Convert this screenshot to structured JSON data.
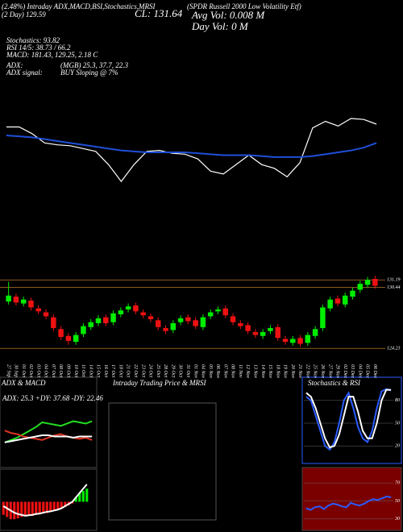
{
  "header": {
    "left1": "(2.48%) Intraday ADX,MACD,BSI,Stochastics,MRSI",
    "left2": "(2 Day) 129.59",
    "name": "(SPDR Russell 2000 Low Volatility Etf)",
    "close": "CL: 131.64",
    "avg_vol": "Avg Vol: 0.008 M",
    "day_vol": "Day Vol: 0  M",
    "stoch": "Stochastics: 93.82",
    "rsi": "RSI 14/5: 38.73 / 66.2",
    "macd": "MACD: 181.43, 129.25, 2.18  C",
    "adx": "ADX:",
    "adx_vals": "(MGB) 25.3, 37.7, 22.3",
    "adx_signal": "ADX  signal:",
    "signal": "BUY Sloping @ 7%"
  },
  "chart_data": [
    {
      "type": "line",
      "ylim": [
        119,
        128
      ],
      "series": [
        {
          "name": "Price",
          "color": "#ffffff",
          "values": [
            126.5,
            126.5,
            125.8,
            124.8,
            124.6,
            124.5,
            124.2,
            123.9,
            122.5,
            120.7,
            122.5,
            123.9,
            124.0,
            123.7,
            123.6,
            123.1,
            121.8,
            121.5,
            122.5,
            123.5,
            122.5,
            122.1,
            121.2,
            122.7,
            126.4,
            127.1,
            126.6,
            127.4,
            127.3,
            126.8
          ]
        },
        {
          "name": "MA",
          "color": "#1f4fd8",
          "values": [
            125.6,
            125.5,
            125.4,
            125.2,
            125.0,
            124.8,
            124.6,
            124.4,
            124.2,
            124.0,
            123.9,
            123.8,
            123.8,
            123.8,
            123.8,
            123.7,
            123.6,
            123.5,
            123.5,
            123.5,
            123.4,
            123.3,
            123.3,
            123.3,
            123.4,
            123.6,
            123.8,
            124.0,
            124.3,
            124.8
          ]
        }
      ]
    },
    {
      "type": "candlestick",
      "ylim": [
        123.6,
        132.2
      ],
      "yticks": [
        124.23,
        130.44,
        131.19
      ],
      "up_color": "#00ee00",
      "down_color": "#ee1111",
      "tick_color": "#8a5a20",
      "categories": [
        "27 Sep",
        "30 Sep",
        "01 Oct",
        "02 Oct",
        "03 Oct",
        "04 Oct",
        "07 Oct",
        "08 Oct",
        "09 Oct",
        "10 Oct",
        "11 Oct",
        "14 Oct",
        "15 Oct",
        "16 Oct",
        "17 Oct",
        "18 Oct",
        "21 Oct",
        "22 Oct",
        "23 Oct",
        "24 Oct",
        "25 Oct",
        "28 Oct",
        "29 Oct",
        "30 Oct",
        "31 Oct",
        "01 Nov",
        "04 Nov",
        "05 Nov",
        "06 Nov",
        "07 Nov",
        "08 Nov",
        "11 Nov",
        "12 Nov",
        "13 Nov",
        "14 Nov",
        "15 Nov",
        "18 Nov",
        "19 Nov",
        "20 Nov",
        "21 Nov",
        "22 Nov",
        "25 Nov",
        "26 Nov",
        "27 Nov",
        "29 Nov",
        "02 Dec",
        "03 Dec",
        "04 Dec",
        "05 Dec",
        "06 Dec"
      ],
      "open": [
        129.0,
        129.5,
        128.8,
        129.1,
        128.3,
        127.9,
        127.4,
        126.2,
        125.5,
        124.9,
        125.7,
        126.4,
        126.8,
        127.4,
        126.9,
        127.7,
        128.2,
        128.6,
        127.9,
        127.5,
        127.1,
        126.3,
        126.1,
        126.9,
        127.4,
        127.1,
        126.4,
        127.5,
        128.0,
        128.3,
        127.5,
        126.8,
        126.6,
        125.9,
        125.5,
        126.0,
        126.4,
        125.2,
        124.8,
        125.3,
        124.8,
        125.5,
        126.3,
        128.3,
        129.3,
        128.7,
        129.5,
        130.2,
        130.7,
        131.3
      ],
      "high": [
        131.0,
        129.8,
        129.5,
        129.4,
        128.6,
        128.2,
        127.7,
        126.5,
        125.8,
        125.9,
        126.8,
        127.2,
        127.6,
        127.7,
        128.1,
        128.4,
        128.8,
        128.9,
        128.2,
        127.8,
        127.4,
        126.6,
        127.1,
        127.6,
        127.7,
        127.4,
        127.7,
        128.2,
        128.5,
        128.6,
        127.8,
        127.1,
        126.9,
        126.2,
        126.2,
        126.6,
        126.7,
        125.5,
        125.5,
        125.6,
        125.9,
        126.5,
        128.7,
        129.5,
        129.6,
        129.9,
        130.4,
        131.1,
        131.5,
        131.6
      ],
      "low": [
        128.7,
        128.6,
        128.5,
        128.1,
        127.7,
        127.2,
        126.0,
        125.1,
        124.6,
        124.6,
        125.4,
        126.1,
        126.5,
        126.5,
        126.6,
        127.4,
        127.9,
        127.7,
        127.3,
        126.9,
        126.1,
        125.7,
        125.8,
        126.6,
        126.7,
        126.2,
        126.1,
        127.2,
        127.7,
        127.3,
        126.6,
        126.2,
        125.7,
        125.3,
        125.2,
        125.7,
        125.0,
        124.6,
        124.5,
        124.4,
        124.5,
        125.2,
        126.0,
        128.0,
        128.5,
        128.4,
        129.2,
        129.9,
        130.4,
        130.3
      ],
      "close": [
        129.6,
        128.9,
        129.2,
        128.4,
        128.0,
        127.5,
        126.3,
        125.4,
        125.0,
        125.6,
        126.5,
        126.9,
        127.3,
        126.8,
        127.8,
        128.1,
        128.5,
        128.0,
        127.6,
        127.2,
        126.4,
        126.0,
        126.8,
        127.3,
        127.0,
        126.5,
        127.4,
        127.9,
        128.2,
        127.6,
        126.9,
        126.5,
        126.0,
        125.6,
        125.9,
        126.3,
        125.3,
        124.9,
        125.2,
        124.7,
        125.6,
        126.2,
        128.4,
        129.2,
        128.8,
        129.6,
        130.1,
        130.8,
        131.2,
        130.6
      ]
    },
    {
      "type": "line",
      "title": "ADX  & MACD",
      "annotation": "ADX: 25.3  +DY: 37.68  -DY: 22.46",
      "ylim": [
        0,
        50
      ],
      "series": [
        {
          "name": "+DY",
          "color": "#22dd22",
          "values": [
            20,
            22,
            24,
            27,
            30,
            33,
            37,
            36,
            35,
            34,
            36,
            38,
            37,
            36,
            38
          ]
        },
        {
          "name": "-DY",
          "color": "#dd3322",
          "values": [
            30,
            28,
            27,
            25,
            24,
            23,
            22,
            24,
            26,
            27,
            25,
            24,
            23,
            24,
            22
          ]
        },
        {
          "name": "ADX",
          "color": "#ffffff",
          "values": [
            20,
            21,
            22,
            23,
            24,
            25,
            26,
            26,
            25,
            25,
            25,
            24,
            25,
            25,
            25
          ]
        }
      ]
    },
    {
      "type": "bar",
      "ylim": [
        -6,
        6
      ],
      "up_color": "#00ee00",
      "down_color": "#ee1111",
      "values": [
        -3,
        -3.5,
        -4,
        -4,
        -3.8,
        -3.5,
        -3.3,
        -3,
        -3.2,
        -3,
        -2.8,
        -2.5,
        -2.6,
        -2.3,
        -2,
        -1.8,
        -1.5,
        -1.2,
        -0.8,
        -0.4,
        1,
        2,
        2.5,
        3
      ],
      "series": [
        {
          "name": "MACD",
          "color": "#ffffff",
          "values": [
            -1,
            -1.5,
            -2,
            -2.5,
            -2.8,
            -3,
            -3.2,
            -3.1,
            -3,
            -2.8,
            -2.7,
            -2.5,
            -2.3,
            -2.2,
            -2,
            -1.8,
            -1.5,
            -1,
            -0.5,
            0,
            1,
            2,
            3,
            4
          ]
        }
      ]
    },
    {
      "type": "line",
      "title": "Stochastics & RSI",
      "ylim": [
        0,
        100
      ],
      "yticks": [
        20,
        50,
        80
      ],
      "series": [
        {
          "name": "%K",
          "color": "#2a5cff",
          "values": [
            85,
            80,
            60,
            40,
            20,
            15,
            25,
            50,
            80,
            90,
            70,
            45,
            30,
            25,
            40,
            70,
            92,
            95,
            93
          ]
        },
        {
          "name": "%D",
          "color": "#ffffff",
          "values": [
            90,
            85,
            70,
            50,
            30,
            18,
            20,
            35,
            60,
            85,
            85,
            65,
            40,
            30,
            30,
            50,
            80,
            94,
            94
          ]
        }
      ]
    },
    {
      "type": "line",
      "ylim": [
        20,
        80
      ],
      "yticks": [
        30,
        50,
        70
      ],
      "series": [
        {
          "name": "RSI",
          "color": "#2a5cff",
          "values": [
            42,
            40,
            43,
            44,
            41,
            45,
            47,
            46,
            44,
            43,
            48,
            46,
            45,
            47,
            50,
            52,
            51,
            53,
            55,
            54
          ]
        }
      ]
    },
    {
      "type": "blank",
      "title": "Intraday Trading Price  & MRSI"
    }
  ]
}
